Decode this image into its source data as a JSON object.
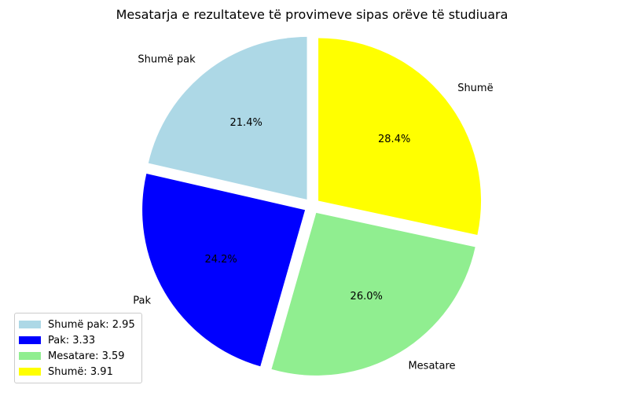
{
  "chart_data": {
    "type": "pie",
    "title": "Mesatarja e rezultateve të provimeve sipas orëve të studiuara",
    "categories": [
      "Shumë pak",
      "Pak",
      "Mesatare",
      "Shumë"
    ],
    "values": [
      2.95,
      3.33,
      3.59,
      3.91
    ],
    "percent_labels": [
      "21.4%",
      "24.2%",
      "26.0%",
      "28.4%"
    ],
    "colors": [
      "#add8e6",
      "#0000ff",
      "#90ee90",
      "#ffff00"
    ],
    "start_angle_deg": 90,
    "direction": "counterclockwise",
    "explode": [
      0.05,
      0.05,
      0.05,
      0.05
    ],
    "legend": {
      "placement": "lower-left",
      "entries": [
        "Shumë pak: 2.95",
        "Pak: 3.33",
        "Mesatare: 3.59",
        "Shumë: 3.91"
      ]
    }
  }
}
